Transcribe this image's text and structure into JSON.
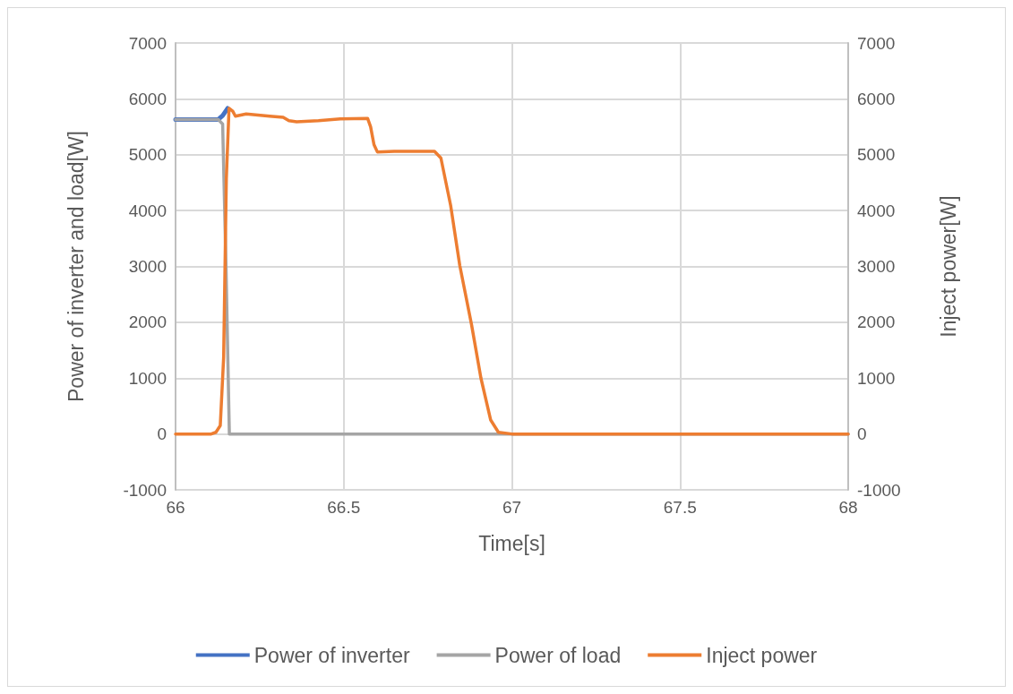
{
  "chart_data": {
    "type": "line",
    "xlabel": "Time[s]",
    "ylabel": "Power of inverter and load[W]",
    "y2label": "Inject power[W]",
    "xlim": [
      66,
      68
    ],
    "xticks": [
      66,
      66.5,
      67,
      67.5,
      68
    ],
    "ylim": [
      -1000,
      7000
    ],
    "yticks": [
      -1000,
      0,
      1000,
      2000,
      3000,
      4000,
      5000,
      6000,
      7000
    ],
    "y2lim": [
      -1000,
      7000
    ],
    "y2ticks": [
      -1000,
      0,
      1000,
      2000,
      3000,
      4000,
      5000,
      6000,
      7000
    ],
    "grid": true,
    "legend": "bottom",
    "marker": "none",
    "line_style": "solid",
    "series": [
      {
        "name": "Power of inverter",
        "color": "#4472c4",
        "x": [
          66,
          66.127,
          66.14,
          66.155
        ],
        "values": [
          5630,
          5630,
          5700,
          5830
        ]
      },
      {
        "name": "Power of load",
        "color": "#a5a5a5",
        "x": [
          66,
          66.127,
          66.14,
          66.15,
          66.16,
          68
        ],
        "values": [
          5630,
          5630,
          5550,
          3000,
          0,
          0
        ]
      },
      {
        "name": "Inject power",
        "color": "#ed7d31",
        "axis": "y2",
        "x": [
          66,
          66.106,
          66.12,
          66.133,
          66.143,
          66.151,
          66.159,
          66.17,
          66.178,
          66.21,
          66.28,
          66.32,
          66.337,
          66.36,
          66.425,
          66.49,
          66.571,
          66.58,
          66.59,
          66.6,
          66.65,
          66.77,
          66.789,
          66.818,
          66.845,
          66.88,
          66.908,
          66.937,
          66.96,
          67,
          68
        ],
        "values": [
          0,
          0,
          30,
          150,
          1370,
          4570,
          5830,
          5780,
          5690,
          5730,
          5690,
          5670,
          5610,
          5590,
          5610,
          5640,
          5650,
          5500,
          5180,
          5050,
          5060,
          5060,
          4940,
          4090,
          3020,
          1960,
          1000,
          250,
          30,
          0,
          0
        ]
      }
    ]
  }
}
